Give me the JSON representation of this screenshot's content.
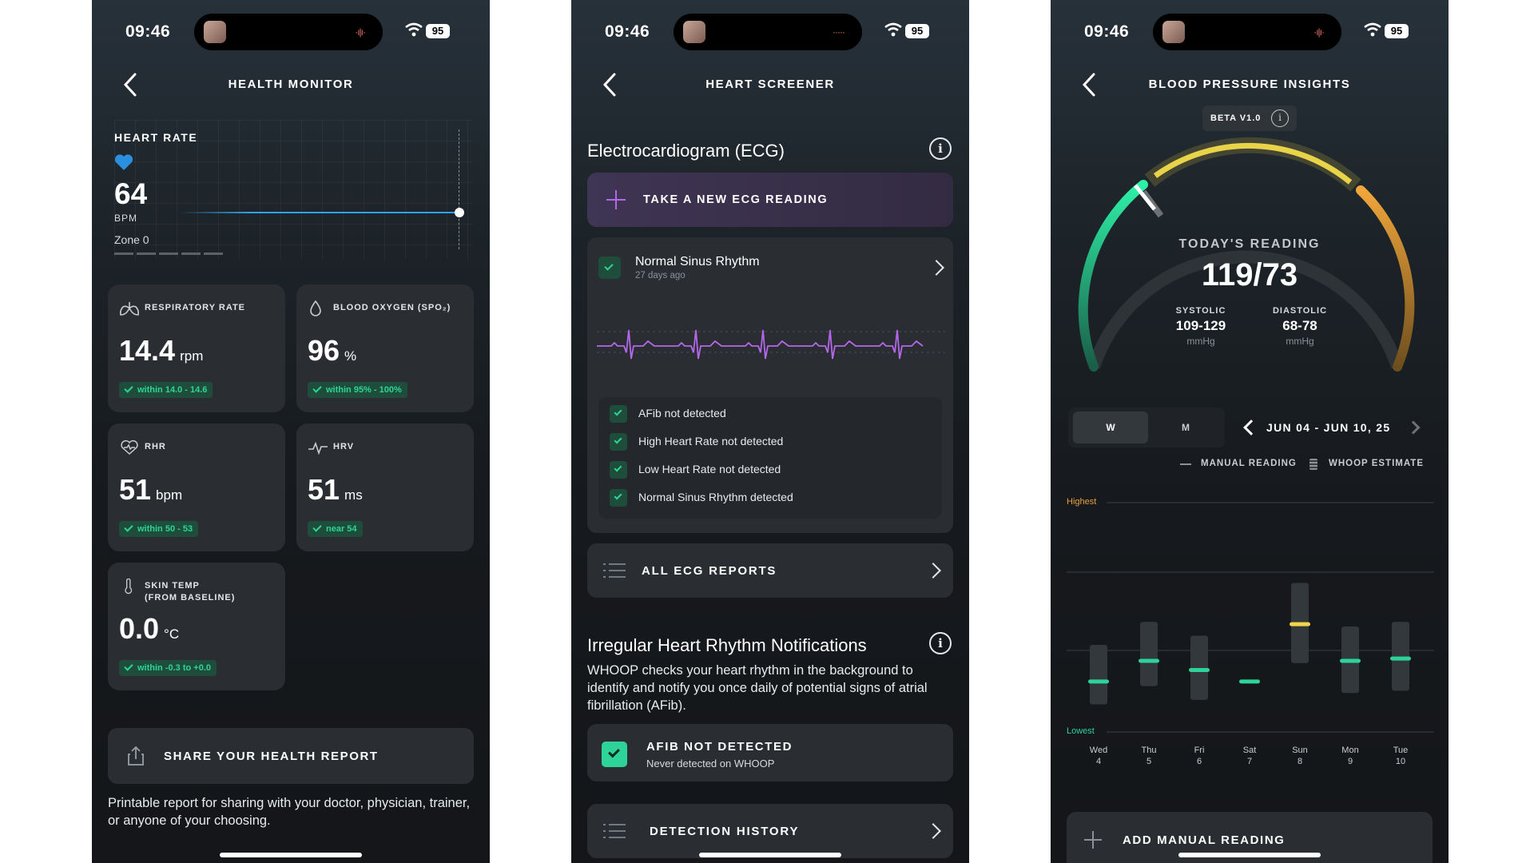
{
  "status": {
    "time": "09:46",
    "battery": "95"
  },
  "health_monitor": {
    "title": "HEALTH MONITOR",
    "heart_rate": {
      "label": "HEART RATE",
      "value": "64",
      "unit": "BPM",
      "zone": "Zone 0"
    },
    "metrics": [
      {
        "label": "RESPIRATORY RATE",
        "value": "14.4",
        "unit": "rpm",
        "badge": "within 14.0 - 14.6"
      },
      {
        "label": "BLOOD OXYGEN (SPO₂)",
        "value": "96",
        "unit": "%",
        "badge": "within 95% - 100%"
      },
      {
        "label": "RHR",
        "value": "51",
        "unit": "bpm",
        "badge": "within 50 - 53"
      },
      {
        "label": "HRV",
        "value": "51",
        "unit": "ms",
        "badge": "near 54"
      },
      {
        "label": "SKIN TEMP",
        "label2": "(FROM BASELINE)",
        "value": "0.0",
        "unit": "°C",
        "badge": "within -0.3 to +0.0"
      }
    ],
    "share_label": "SHARE YOUR HEALTH REPORT",
    "share_text": "Printable report for sharing with your doctor, physician, trainer, or anyone of your choosing."
  },
  "heart_screener": {
    "title": "HEART SCREENER",
    "ecg_title": "Electrocardiogram (ECG)",
    "take_reading": "TAKE A NEW ECG READING",
    "result_title": "Normal Sinus Rhythm",
    "result_sub": "27 days ago",
    "checks": [
      "AFib not detected",
      "High Heart Rate not detected",
      "Low Heart Rate not detected",
      "Normal Sinus Rhythm detected"
    ],
    "all_reports": "ALL ECG REPORTS",
    "irn_title": "Irregular Heart Rhythm Notifications",
    "irn_text": "WHOOP checks your heart rhythm in the background to identify and notify you once daily of potential signs of atrial fibrillation (AFib).",
    "afib_title": "AFIB NOT DETECTED",
    "afib_sub": "Never detected on WHOOP",
    "detection_history": "DETECTION HISTORY"
  },
  "bp_insights": {
    "title": "BLOOD PRESSURE INSIGHTS",
    "beta": "BETA V1.0",
    "todays_label": "TODAY'S READING",
    "todays_value": "119/73",
    "systolic": {
      "label": "SYSTOLIC",
      "value": "109-129",
      "unit": "mmHg"
    },
    "diastolic": {
      "label": "DIASTOLIC",
      "value": "68-78",
      "unit": "mmHg"
    },
    "toggle": {
      "week": "W",
      "month": "M"
    },
    "date_range": "JUN 04 - JUN 10, 25",
    "legend": {
      "manual": "MANUAL READING",
      "estimate": "WHOOP ESTIMATE"
    },
    "chart_labels": {
      "highest": "Highest",
      "lowest": "Lowest"
    },
    "add_manual": "ADD MANUAL READING",
    "colors": {
      "green": "#2ed39a",
      "yellow": "#f1d64a",
      "orange": "#e8a23a"
    },
    "chart_data": {
      "type": "bar",
      "categories": [
        "Wed 4",
        "Thu 5",
        "Fri 6",
        "Sat 7",
        "Sun 8",
        "Mon 9",
        "Tue 10"
      ],
      "days": [
        {
          "day": "Wed",
          "date": "4",
          "low": 0.12,
          "high": 0.38,
          "mark": 0.22,
          "color": "#2ed39a"
        },
        {
          "day": "Thu",
          "date": "5",
          "low": 0.2,
          "high": 0.48,
          "mark": 0.31,
          "color": "#2ed39a"
        },
        {
          "day": "Fri",
          "date": "6",
          "low": 0.14,
          "high": 0.42,
          "mark": 0.27,
          "color": "#2ed39a"
        },
        {
          "day": "Sat",
          "date": "7",
          "low": 0.22,
          "high": 0.22,
          "mark": 0.22,
          "color": "#2ed39a"
        },
        {
          "day": "Sun",
          "date": "8",
          "low": 0.3,
          "high": 0.65,
          "mark": 0.47,
          "color": "#f1d64a"
        },
        {
          "day": "Mon",
          "date": "9",
          "low": 0.17,
          "high": 0.46,
          "mark": 0.31,
          "color": "#2ed39a"
        },
        {
          "day": "Tue",
          "date": "10",
          "low": 0.18,
          "high": 0.48,
          "mark": 0.32,
          "color": "#2ed39a"
        }
      ]
    }
  }
}
